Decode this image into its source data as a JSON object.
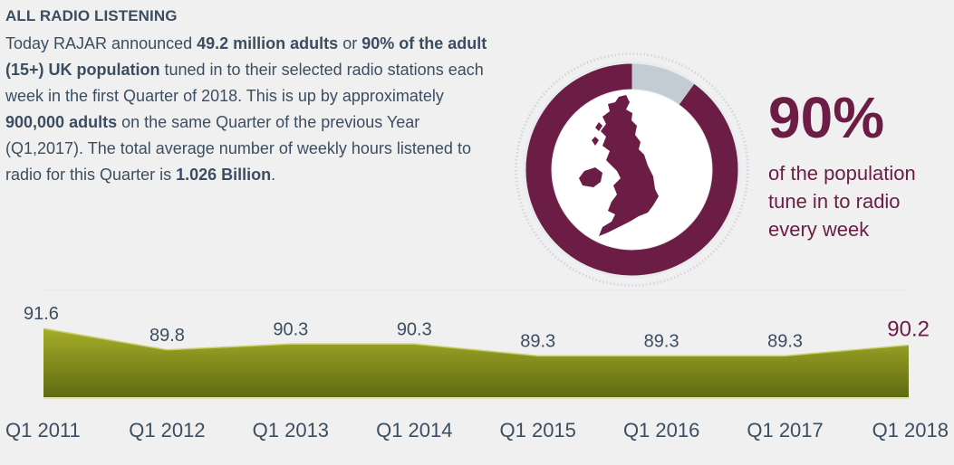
{
  "intro": {
    "heading": "ALL RADIO LISTENING",
    "p1": "Today RAJAR announced ",
    "b1": "49.2 million adults",
    "p2": " or ",
    "b2": "90% of the adult (15+) UK population",
    "p3": " tuned in to their selected radio stations each week in the first Quarter of 2018. This is up by approximately ",
    "b3": "900,000 adults",
    "p4": " on the same Quarter of the previous Year (Q1,2017). The total average number of weekly hours listened to radio for this Quarter is ",
    "b4": "1.026 Billion",
    "p5": "."
  },
  "stat": {
    "value": "90%",
    "fraction": 0.9,
    "description": "of the population tune in to radio every week"
  },
  "colors": {
    "accent": "#6b1d45",
    "ring_track": "#c4ccd3",
    "area_top": "#a6ad2a",
    "area_bottom": "#5e6a10",
    "text": "#3b4e61"
  },
  "icons": {
    "map": "uk-map-icon"
  },
  "chart_data": {
    "type": "area",
    "categories": [
      "Q1 2011",
      "Q1 2012",
      "Q1 2013",
      "Q1 2014",
      "Q1 2015",
      "Q1 2016",
      "Q1 2017",
      "Q1 2018"
    ],
    "values": [
      91.6,
      89.8,
      90.3,
      90.3,
      89.3,
      89.3,
      89.3,
      90.2
    ],
    "data_labels": [
      "91.6",
      "89.8",
      "90.3",
      "90.3",
      "89.3",
      "89.3",
      "89.3",
      "90.2"
    ],
    "highlight_last": true,
    "title": "",
    "xlabel": "",
    "ylabel": "",
    "grid": false
  }
}
